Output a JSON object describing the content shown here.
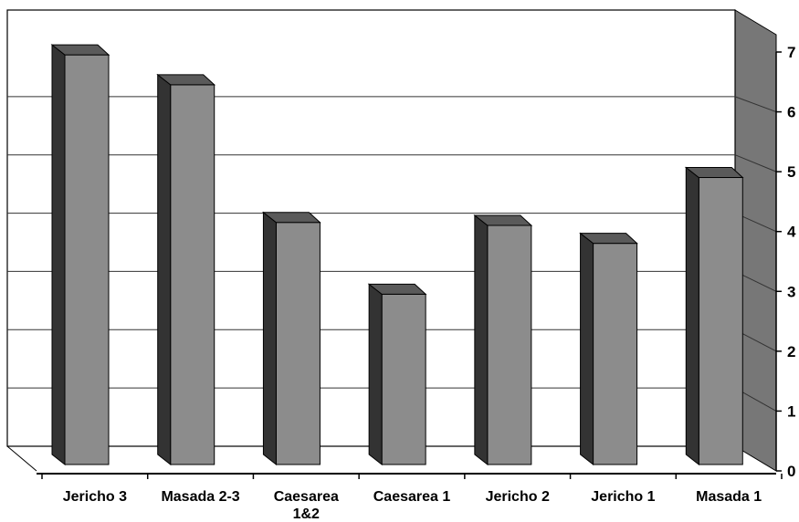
{
  "chart_data": {
    "type": "bar",
    "style": "3d-column",
    "categories": [
      "Jericho 3",
      "Masada 2-3",
      "Caesarea 1&2",
      "Caesarea 1",
      "Jericho 2",
      "Jericho 1",
      "Masada 1"
    ],
    "category_lines": [
      [
        "Jericho 3"
      ],
      [
        "Masada 2-3"
      ],
      [
        "Caesarea",
        "1&2"
      ],
      [
        "Caesarea 1"
      ],
      [
        "Jericho 2"
      ],
      [
        "Jericho 1"
      ],
      [
        "Masada 1"
      ]
    ],
    "values": [
      6.8,
      6.3,
      4.0,
      2.8,
      3.95,
      3.65,
      4.75
    ],
    "title": "",
    "xlabel": "",
    "ylabel": "",
    "ylim": [
      0,
      7
    ],
    "yticks": [
      0,
      1,
      2,
      3,
      4,
      5,
      6,
      7
    ],
    "y_axis_side": "right",
    "grid": true,
    "legend": "none",
    "colors": {
      "bar_front": "#8c8c8c",
      "bar_side": "#333333",
      "bar_top": "#5a5a5a",
      "back_wall": "#ffffff",
      "side_wall": "#777777",
      "gridline": "#333333",
      "axis": "#000000"
    }
  }
}
